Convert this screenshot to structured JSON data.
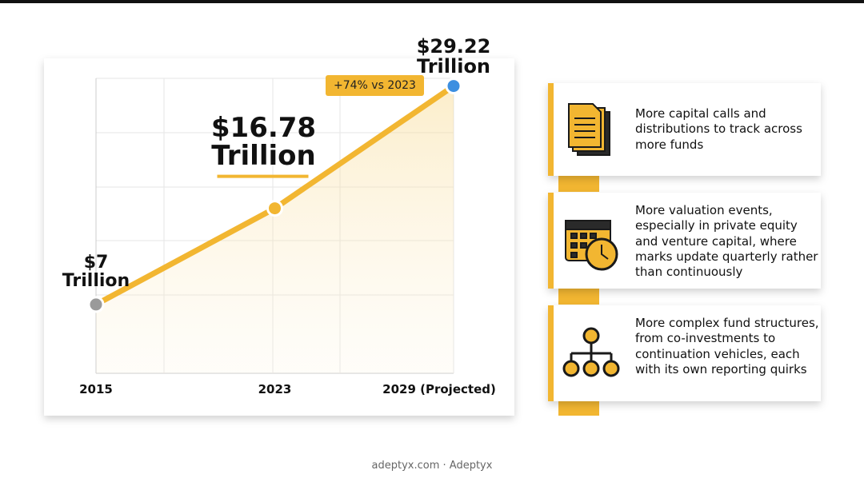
{
  "chart_data": {
    "type": "line",
    "categories": [
      "2015",
      "2023",
      "2029 (Projected)"
    ],
    "values": [
      7,
      16.78,
      29.22
    ],
    "value_labels": [
      "$7 Trillion",
      "$16.78 Trillion",
      "$29.22 Trillion"
    ],
    "annotation": "+74% vs 2023",
    "ylim": [
      0,
      30
    ],
    "color": "#f2b631",
    "point_colors": [
      "#9a9a9a",
      "#f2b631",
      "#3d8fe0"
    ],
    "grid": true
  },
  "cards": [
    {
      "text": "More capital calls and distributions to track across more funds"
    },
    {
      "text": "More valuation events, especially in private equity and venture capital, where marks update quarterly rather than continuously"
    },
    {
      "text": "More complex fund structures, from co-investments to continuation vehicles, each with its own reporting quirks"
    }
  ],
  "footer": "adeptyx.com · Adeptyx"
}
